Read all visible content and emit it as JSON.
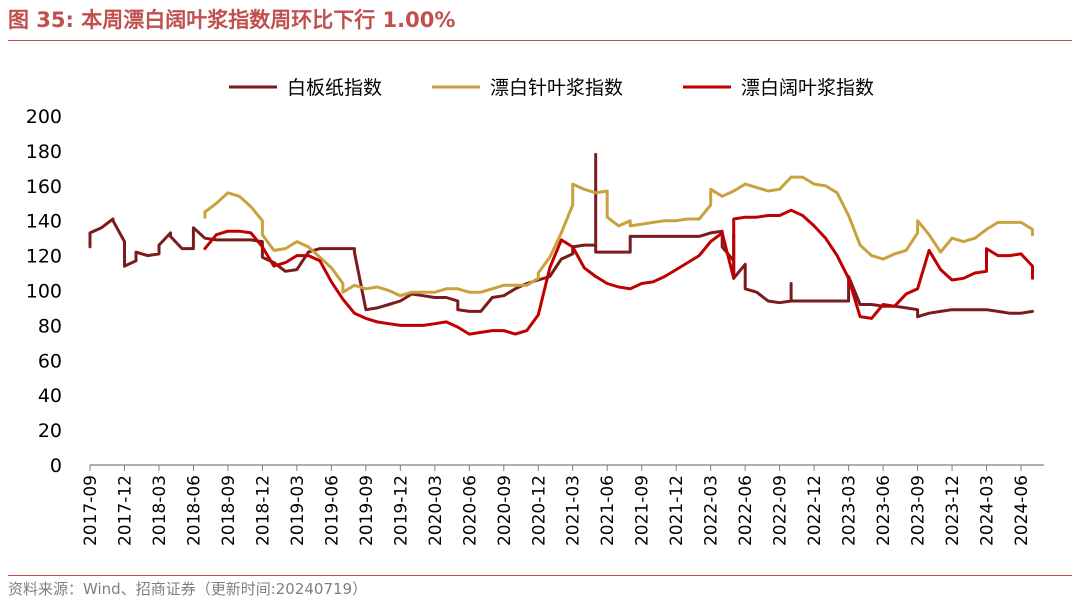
{
  "figure": {
    "title": "图 35:  本周漂白阔叶浆指数周环比下行 1.00%",
    "source": "资料来源：Wind、招商证券（更新时间:20240719）"
  },
  "chart_data": {
    "type": "line",
    "title": "",
    "xlabel": "",
    "ylabel": "",
    "ylim": [
      0,
      200
    ],
    "yticks": [
      0,
      20,
      40,
      60,
      80,
      100,
      120,
      140,
      160,
      180,
      200
    ],
    "xlim": [
      "2017-09",
      "2024-08"
    ],
    "xticks": [
      "2017-09",
      "2017-12",
      "2018-03",
      "2018-06",
      "2018-09",
      "2018-12",
      "2019-03",
      "2019-06",
      "2019-09",
      "2019-12",
      "2020-03",
      "2020-06",
      "2020-09",
      "2020-12",
      "2021-03",
      "2021-06",
      "2021-09",
      "2021-12",
      "2022-03",
      "2022-06",
      "2022-09",
      "2022-12",
      "2023-03",
      "2023-06",
      "2023-09",
      "2023-12",
      "2024-03",
      "2024-06"
    ],
    "grid": false,
    "legend": "top",
    "series": [
      {
        "name": "白板纸指数",
        "color": "#7b1c1c",
        "points": [
          [
            "2017-09",
            125
          ],
          [
            "2017-09",
            133
          ],
          [
            "2017-10",
            136
          ],
          [
            "2017-11",
            141
          ],
          [
            "2017-11",
            140
          ],
          [
            "2017-12",
            128
          ],
          [
            "2017-12",
            114
          ],
          [
            "2018-01",
            117
          ],
          [
            "2018-01",
            122
          ],
          [
            "2018-02",
            120
          ],
          [
            "2018-03",
            121
          ],
          [
            "2018-03",
            126
          ],
          [
            "2018-04",
            133
          ],
          [
            "2018-04",
            131
          ],
          [
            "2018-05",
            124
          ],
          [
            "2018-06",
            124
          ],
          [
            "2018-06",
            130
          ],
          [
            "2018-06",
            136
          ],
          [
            "2018-07",
            130
          ],
          [
            "2018-08",
            129
          ],
          [
            "2018-09",
            129
          ],
          [
            "2018-10",
            129
          ],
          [
            "2018-11",
            129
          ],
          [
            "2018-12",
            128
          ],
          [
            "2018-12",
            124
          ],
          [
            "2018-12",
            119
          ],
          [
            "2019-01",
            116
          ],
          [
            "2019-02",
            111
          ],
          [
            "2019-03",
            112
          ],
          [
            "2019-04",
            122
          ],
          [
            "2019-05",
            124
          ],
          [
            "2019-06",
            124
          ],
          [
            "2019-07",
            124
          ],
          [
            "2019-08",
            124
          ],
          [
            "2019-08",
            122
          ],
          [
            "2019-09",
            89
          ],
          [
            "2019-10",
            90
          ],
          [
            "2019-11",
            92
          ],
          [
            "2019-12",
            94
          ],
          [
            "2020-01",
            98
          ],
          [
            "2020-02",
            97
          ],
          [
            "2020-03",
            96
          ],
          [
            "2020-04",
            96
          ],
          [
            "2020-05",
            94
          ],
          [
            "2020-05",
            89
          ],
          [
            "2020-06",
            88
          ],
          [
            "2020-07",
            88
          ],
          [
            "2020-08",
            96
          ],
          [
            "2020-09",
            97
          ],
          [
            "2020-10",
            101
          ],
          [
            "2020-11",
            104
          ],
          [
            "2020-12",
            106
          ],
          [
            "2021-01",
            108
          ],
          [
            "2021-02",
            118
          ],
          [
            "2021-03",
            121
          ],
          [
            "2021-03",
            125
          ],
          [
            "2021-04",
            126
          ],
          [
            "2021-05",
            126
          ],
          [
            "2021-05",
            178
          ],
          [
            "2021-05",
            122
          ],
          [
            "2021-06",
            122
          ],
          [
            "2021-07",
            122
          ],
          [
            "2021-08",
            122
          ],
          [
            "2021-08",
            131
          ],
          [
            "2021-09",
            131
          ],
          [
            "2021-10",
            131
          ],
          [
            "2021-11",
            131
          ],
          [
            "2021-12",
            131
          ],
          [
            "2022-01",
            131
          ],
          [
            "2022-02",
            131
          ],
          [
            "2022-03",
            133
          ],
          [
            "2022-04",
            134
          ],
          [
            "2022-04",
            125
          ],
          [
            "2022-05",
            117
          ],
          [
            "2022-05",
            132
          ],
          [
            "2022-05",
            107
          ],
          [
            "2022-06",
            115
          ],
          [
            "2022-06",
            101
          ],
          [
            "2022-07",
            99
          ],
          [
            "2022-08",
            94
          ],
          [
            "2022-09",
            93
          ],
          [
            "2022-10",
            94
          ],
          [
            "2022-10",
            104
          ],
          [
            "2022-10",
            94
          ],
          [
            "2022-11",
            94
          ],
          [
            "2022-12",
            94
          ],
          [
            "2023-01",
            94
          ],
          [
            "2023-02",
            94
          ],
          [
            "2023-03",
            94
          ],
          [
            "2023-03",
            108
          ],
          [
            "2023-04",
            92
          ],
          [
            "2023-05",
            92
          ],
          [
            "2023-06",
            91
          ],
          [
            "2023-07",
            91
          ],
          [
            "2023-08",
            90
          ],
          [
            "2023-09",
            89
          ],
          [
            "2023-09",
            88
          ],
          [
            "2023-09",
            85
          ],
          [
            "2023-10",
            87
          ],
          [
            "2023-11",
            88
          ],
          [
            "2023-12",
            89
          ],
          [
            "2024-01",
            89
          ],
          [
            "2024-02",
            89
          ],
          [
            "2024-03",
            89
          ],
          [
            "2024-04",
            88
          ],
          [
            "2024-05",
            87
          ],
          [
            "2024-06",
            87
          ],
          [
            "2024-07",
            88
          ]
        ]
      },
      {
        "name": "漂白针叶浆指数",
        "color": "#c9a23e",
        "points": [
          [
            "2018-07",
            142
          ],
          [
            "2018-07",
            145
          ],
          [
            "2018-08",
            150
          ],
          [
            "2018-09",
            156
          ],
          [
            "2018-10",
            154
          ],
          [
            "2018-11",
            148
          ],
          [
            "2018-12",
            140
          ],
          [
            "2018-12",
            132
          ],
          [
            "2019-01",
            123
          ],
          [
            "2019-02",
            124
          ],
          [
            "2019-03",
            128
          ],
          [
            "2019-04",
            125
          ],
          [
            "2019-05",
            119
          ],
          [
            "2019-06",
            113
          ],
          [
            "2019-07",
            104
          ],
          [
            "2019-07",
            99
          ],
          [
            "2019-08",
            103
          ],
          [
            "2019-09",
            101
          ],
          [
            "2019-10",
            102
          ],
          [
            "2019-11",
            100
          ],
          [
            "2019-12",
            97
          ],
          [
            "2020-01",
            99
          ],
          [
            "2020-02",
            99
          ],
          [
            "2020-03",
            99
          ],
          [
            "2020-04",
            101
          ],
          [
            "2020-05",
            101
          ],
          [
            "2020-06",
            99
          ],
          [
            "2020-07",
            99
          ],
          [
            "2020-08",
            101
          ],
          [
            "2020-09",
            103
          ],
          [
            "2020-10",
            103
          ],
          [
            "2020-11",
            103
          ],
          [
            "2020-12",
            107
          ],
          [
            "2020-12",
            110
          ],
          [
            "2021-01",
            119
          ],
          [
            "2021-02",
            133
          ],
          [
            "2021-03",
            149
          ],
          [
            "2021-03",
            161
          ],
          [
            "2021-04",
            158
          ],
          [
            "2021-05",
            156
          ],
          [
            "2021-06",
            157
          ],
          [
            "2021-06",
            142
          ],
          [
            "2021-07",
            137
          ],
          [
            "2021-08",
            140
          ],
          [
            "2021-08",
            137
          ],
          [
            "2021-09",
            138
          ],
          [
            "2021-10",
            139
          ],
          [
            "2021-11",
            140
          ],
          [
            "2021-12",
            140
          ],
          [
            "2022-01",
            141
          ],
          [
            "2022-02",
            141
          ],
          [
            "2022-03",
            149
          ],
          [
            "2022-03",
            158
          ],
          [
            "2022-04",
            154
          ],
          [
            "2022-05",
            157
          ],
          [
            "2022-06",
            161
          ],
          [
            "2022-07",
            159
          ],
          [
            "2022-08",
            157
          ],
          [
            "2022-09",
            158
          ],
          [
            "2022-10",
            165
          ],
          [
            "2022-11",
            165
          ],
          [
            "2022-12",
            161
          ],
          [
            "2023-01",
            160
          ],
          [
            "2023-02",
            156
          ],
          [
            "2023-03",
            143
          ],
          [
            "2023-04",
            126
          ],
          [
            "2023-05",
            120
          ],
          [
            "2023-06",
            118
          ],
          [
            "2023-07",
            121
          ],
          [
            "2023-08",
            123
          ],
          [
            "2023-09",
            133
          ],
          [
            "2023-09",
            140
          ],
          [
            "2023-10",
            132
          ],
          [
            "2023-11",
            122
          ],
          [
            "2023-12",
            130
          ],
          [
            "2024-01",
            128
          ],
          [
            "2024-02",
            130
          ],
          [
            "2024-03",
            135
          ],
          [
            "2024-04",
            139
          ],
          [
            "2024-05",
            139
          ],
          [
            "2024-06",
            139
          ],
          [
            "2024-07",
            135
          ],
          [
            "2024-07",
            132
          ]
        ]
      },
      {
        "name": "漂白阔叶浆指数",
        "color": "#c00000",
        "points": [
          [
            "2018-07",
            124
          ],
          [
            "2018-08",
            132
          ],
          [
            "2018-09",
            134
          ],
          [
            "2018-10",
            134
          ],
          [
            "2018-11",
            133
          ],
          [
            "2018-12",
            125
          ],
          [
            "2019-01",
            114
          ],
          [
            "2019-02",
            116
          ],
          [
            "2019-03",
            120
          ],
          [
            "2019-04",
            120
          ],
          [
            "2019-05",
            117
          ],
          [
            "2019-06",
            105
          ],
          [
            "2019-07",
            95
          ],
          [
            "2019-08",
            87
          ],
          [
            "2019-09",
            84
          ],
          [
            "2019-10",
            82
          ],
          [
            "2019-11",
            81
          ],
          [
            "2019-12",
            80
          ],
          [
            "2020-01",
            80
          ],
          [
            "2020-02",
            80
          ],
          [
            "2020-03",
            81
          ],
          [
            "2020-04",
            82
          ],
          [
            "2020-05",
            79
          ],
          [
            "2020-06",
            75
          ],
          [
            "2020-07",
            76
          ],
          [
            "2020-08",
            77
          ],
          [
            "2020-09",
            77
          ],
          [
            "2020-10",
            75
          ],
          [
            "2020-11",
            77
          ],
          [
            "2020-12",
            86
          ],
          [
            "2021-01",
            113
          ],
          [
            "2021-02",
            129
          ],
          [
            "2021-03",
            125
          ],
          [
            "2021-04",
            113
          ],
          [
            "2021-05",
            108
          ],
          [
            "2021-06",
            104
          ],
          [
            "2021-07",
            102
          ],
          [
            "2021-08",
            101
          ],
          [
            "2021-09",
            104
          ],
          [
            "2021-10",
            105
          ],
          [
            "2021-11",
            108
          ],
          [
            "2021-12",
            112
          ],
          [
            "2022-01",
            116
          ],
          [
            "2022-02",
            120
          ],
          [
            "2022-03",
            128
          ],
          [
            "2022-04",
            133
          ],
          [
            "2022-05",
            107
          ],
          [
            "2022-05",
            141
          ],
          [
            "2022-06",
            142
          ],
          [
            "2022-07",
            142
          ],
          [
            "2022-08",
            143
          ],
          [
            "2022-09",
            143
          ],
          [
            "2022-10",
            146
          ],
          [
            "2022-11",
            143
          ],
          [
            "2022-12",
            137
          ],
          [
            "2023-01",
            130
          ],
          [
            "2023-02",
            120
          ],
          [
            "2023-03",
            107
          ],
          [
            "2023-04",
            85
          ],
          [
            "2023-05",
            84
          ],
          [
            "2023-06",
            92
          ],
          [
            "2023-07",
            91
          ],
          [
            "2023-08",
            98
          ],
          [
            "2023-09",
            101
          ],
          [
            "2023-10",
            123
          ],
          [
            "2023-11",
            112
          ],
          [
            "2023-12",
            106
          ],
          [
            "2024-01",
            107
          ],
          [
            "2024-02",
            110
          ],
          [
            "2024-03",
            111
          ],
          [
            "2024-03",
            124
          ],
          [
            "2024-04",
            120
          ],
          [
            "2024-05",
            120
          ],
          [
            "2024-06",
            121
          ],
          [
            "2024-07",
            114
          ],
          [
            "2024-07",
            107
          ]
        ]
      }
    ]
  }
}
